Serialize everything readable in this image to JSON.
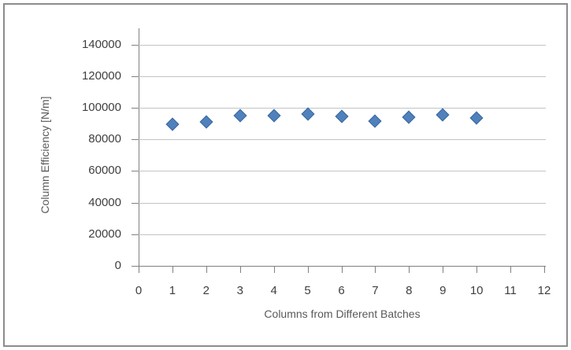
{
  "chart_data": {
    "type": "scatter",
    "title": "",
    "xlabel": "Columns from Different Batches",
    "ylabel": "Column Efficiency [N/m]",
    "x": [
      1,
      2,
      3,
      4,
      5,
      6,
      7,
      8,
      9,
      10
    ],
    "y": [
      89500,
      91000,
      95000,
      95000,
      96000,
      94500,
      91500,
      94000,
      95500,
      93500
    ],
    "xlim": [
      0,
      12
    ],
    "ylim": [
      0,
      140000
    ],
    "xticks": [
      0,
      1,
      2,
      3,
      4,
      5,
      6,
      7,
      8,
      9,
      10,
      11,
      12
    ],
    "yticks": [
      0,
      20000,
      40000,
      60000,
      80000,
      100000,
      120000,
      140000
    ],
    "grid": "horizontal-only",
    "legend": "none",
    "marker": "diamond",
    "colors": {
      "marker_fill": "#4F81BD",
      "marker_border": "#3A679C",
      "gridline": "#C3C3C3",
      "axis_line": "#808080",
      "tick_label": "#3F3F3F",
      "axis_title": "#595959",
      "frame_border": "#8C8C8C",
      "background": "#FFFFFF"
    }
  }
}
